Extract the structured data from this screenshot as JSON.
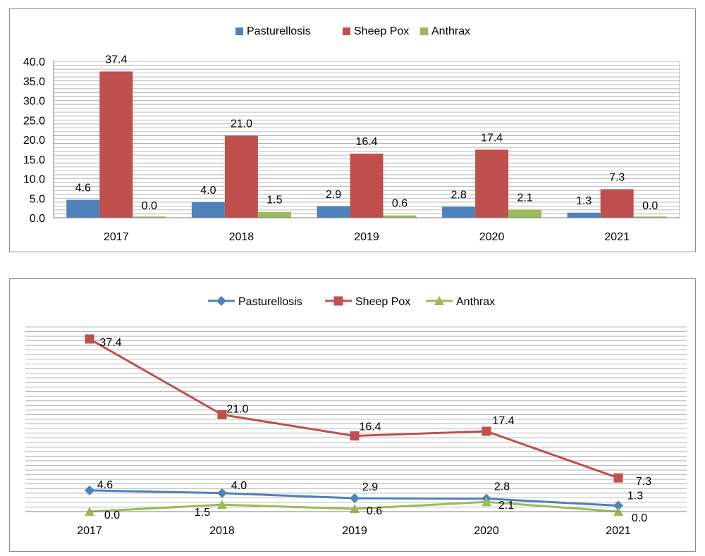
{
  "chart_data": [
    {
      "type": "bar",
      "categories": [
        "2017",
        "2018",
        "2019",
        "2020",
        "2021"
      ],
      "series": [
        {
          "name": "Pasturellosis",
          "values": [
            4.6,
            4.0,
            2.9,
            2.8,
            1.3
          ],
          "color": "#4f81bd"
        },
        {
          "name": "Sheep Pox",
          "values": [
            37.4,
            21.0,
            16.4,
            17.4,
            7.3
          ],
          "color": "#c0504d"
        },
        {
          "name": "Anthrax",
          "values": [
            0.0,
            1.5,
            0.6,
            2.1,
            0.0
          ],
          "color": "#9bbb59"
        }
      ],
      "data_labels": {
        "Pasturellosis": [
          "4.6",
          "4.0",
          "2.9",
          "2.8",
          "1.3"
        ],
        "Sheep Pox": [
          "37.4",
          "21.0",
          "16.4",
          "17.4",
          "7.3"
        ],
        "Anthrax": [
          "0.0",
          "1.5",
          "0.6",
          "2.1",
          "0.0"
        ]
      },
      "y_ticks": [
        "0.0",
        "5.0",
        "10.0",
        "15.0",
        "20.0",
        "25.0",
        "30.0",
        "35.0",
        "40.0"
      ],
      "ylim": [
        0,
        40
      ],
      "legend": "top-center",
      "grid": true
    },
    {
      "type": "line",
      "categories": [
        "2017",
        "2018",
        "2019",
        "2020",
        "2021"
      ],
      "series": [
        {
          "name": "Pasturellosis",
          "values": [
            4.6,
            4.0,
            2.9,
            2.8,
            1.3
          ],
          "color": "#4f81bd",
          "marker": "diamond"
        },
        {
          "name": "Sheep Pox",
          "values": [
            37.4,
            21.0,
            16.4,
            17.4,
            7.3
          ],
          "color": "#c0504d",
          "marker": "square"
        },
        {
          "name": "Anthrax",
          "values": [
            0.0,
            1.5,
            0.6,
            2.1,
            0.0
          ],
          "color": "#9bbb59",
          "marker": "triangle"
        }
      ],
      "data_labels": {
        "Pasturellosis": [
          "4.6",
          "4.0",
          "2.9",
          "2.8",
          "1.3"
        ],
        "Sheep Pox": [
          "37.4",
          "21.0",
          "16.4",
          "17.4",
          "7.3"
        ],
        "Anthrax": [
          "0.0",
          "1.5",
          "0.6",
          "2.1",
          "0.0"
        ]
      },
      "ylim": [
        0,
        40
      ],
      "legend": "top-center",
      "grid": true
    }
  ]
}
